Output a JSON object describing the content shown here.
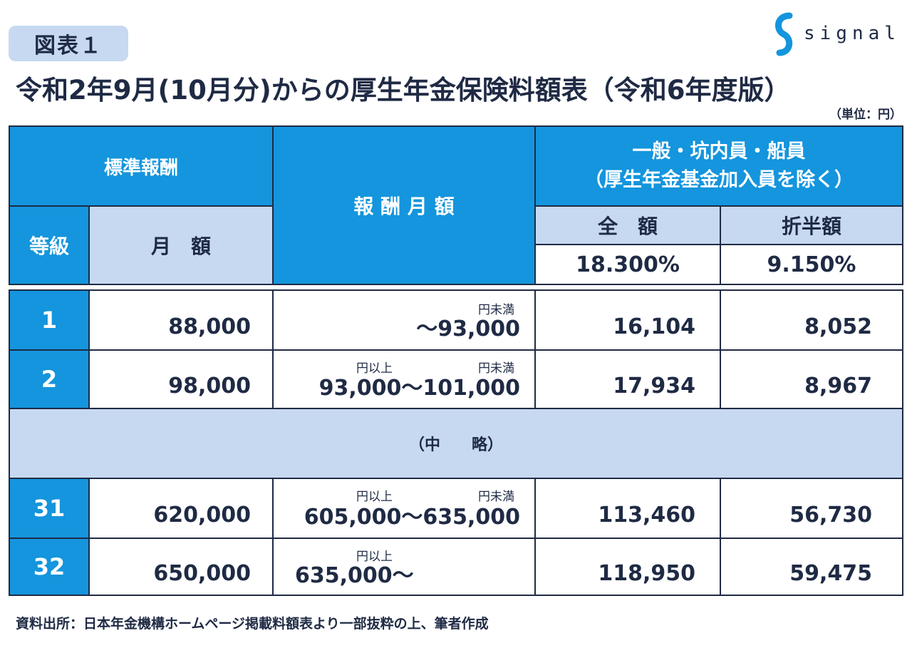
{
  "header": {
    "figure_label": "図表１",
    "title": "令和2年9月(10月分)からの厚生年金保険料額表（令和6年度版）",
    "unit": "（単位：円）",
    "brand": "signal"
  },
  "table": {
    "col_standard_remuneration": "標準報酬",
    "col_grade": "等級",
    "col_monthly_amount": "月　額",
    "col_remuneration_monthly": "報 酬 月 額",
    "col_category_line1": "一般・坑内員・船員",
    "col_category_line2": "（厚生年金基金加入員を除く）",
    "col_full": "全　額",
    "col_half": "折半額",
    "rate_full": "18.300%",
    "rate_half": "9.150%",
    "omitted": "（中　　略）",
    "rows": [
      {
        "grade": "1",
        "monthly": "88,000",
        "lower_note": "",
        "upper_note": "円未満",
        "range": "〜93,000",
        "full": "16,104",
        "half": "8,052"
      },
      {
        "grade": "2",
        "monthly": "98,000",
        "lower_note": "円以上",
        "upper_note": "円未満",
        "range": "93,000〜101,000",
        "full": "17,934",
        "half": "8,967"
      },
      {
        "grade": "31",
        "monthly": "620,000",
        "lower_note": "円以上",
        "upper_note": "円未満",
        "range": "605,000〜635,000",
        "full": "113,460",
        "half": "56,730"
      },
      {
        "grade": "32",
        "monthly": "650,000",
        "lower_note": "円以上",
        "upper_note": "",
        "range": "635,000〜",
        "full": "118,950",
        "half": "59,475"
      }
    ]
  },
  "footer": {
    "source": "資料出所：日本年金機構ホームページ掲載料額表より一部抜粋の上、筆者作成"
  },
  "colors": {
    "header_blue": "#1495dd",
    "header_light": "#c6d9f0",
    "text_navy": "#1f2a44"
  }
}
